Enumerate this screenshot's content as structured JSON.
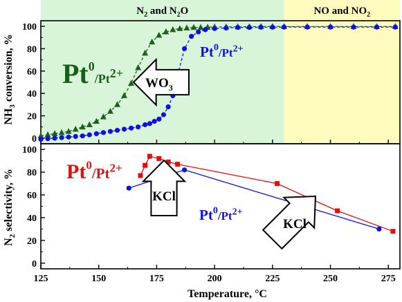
{
  "chart_data": [
    {
      "type": "line",
      "xlim": [
        125,
        280
      ],
      "ylim": [
        -5,
        105
      ],
      "ylabel_parts": {
        "pre": "NH",
        "sub": "3",
        "post": " conversion, %"
      },
      "yticks": [
        0,
        20,
        40,
        60,
        80,
        100
      ],
      "regions": [
        {
          "x_from": 125,
          "x_to": 230,
          "color": "#d9f5d9",
          "label_parts": {
            "a": "N",
            "a_sub": "2",
            "mid": " and N",
            "b_sub": "2",
            "post": "O"
          }
        },
        {
          "x_from": 230,
          "x_to": 280,
          "color": "#fffbbf",
          "label_parts": {
            "a": "NO and NO",
            "a_sub": "2",
            "mid": "",
            "b_sub": "",
            "post": ""
          }
        }
      ],
      "annotations": {
        "green_label": {
          "base": "Pt",
          "sup0": "0",
          "rest": "/Pt",
          "sup2": "2+",
          "color": "#1a5e1a"
        },
        "blue_label": {
          "base": "Pt",
          "sup0": "0",
          "rest": "/Pt",
          "sup2": "2+",
          "color": "#1010e0"
        },
        "arrow_label": {
          "base": "WO",
          "sub": "3"
        }
      },
      "series": [
        {
          "color": "#1e5e1e",
          "marker": "triangle",
          "x": [
            125,
            128,
            131,
            134,
            137,
            140,
            143,
            146,
            149,
            152,
            155,
            158,
            161,
            164,
            167,
            170,
            173,
            176,
            179,
            182,
            185,
            188,
            191,
            194,
            197,
            200,
            205,
            210,
            215,
            220,
            225,
            230,
            240,
            250,
            260,
            270,
            278
          ],
          "y": [
            2,
            3,
            4,
            5,
            6,
            8,
            10,
            12,
            15,
            19,
            24,
            30,
            38,
            49,
            63,
            76,
            86,
            92,
            95,
            97,
            98,
            98.5,
            99,
            99,
            99.2,
            99.4,
            99.5,
            99.6,
            99.7,
            99.8,
            99.8,
            99.8,
            99.8,
            99.8,
            99.8,
            99.8,
            99.8
          ]
        },
        {
          "color": "#1010e0",
          "marker": "circle",
          "x": [
            125,
            128,
            131,
            134,
            137,
            140,
            143,
            146,
            149,
            152,
            155,
            158,
            161,
            164,
            167,
            170,
            172,
            174,
            176,
            178,
            180,
            182,
            184,
            187,
            190,
            193,
            196,
            200,
            205,
            210,
            215,
            220,
            225,
            230,
            240,
            250,
            260,
            270,
            278
          ],
          "y": [
            -1,
            -0.5,
            0,
            0.5,
            1,
            1.5,
            2,
            3,
            4,
            5,
            6,
            7,
            8,
            9,
            10,
            12,
            13,
            15,
            17,
            21,
            28,
            38,
            56,
            80,
            91,
            95,
            97,
            98,
            98.5,
            99,
            99,
            99.2,
            99.2,
            99.3,
            99.3,
            99.3,
            99.3,
            99.3,
            99.3
          ]
        }
      ]
    },
    {
      "type": "line",
      "xlim": [
        125,
        280
      ],
      "ylim": [
        -5,
        105
      ],
      "xlabel": "Temperature,  °C",
      "ylabel_parts": {
        "pre": "N",
        "sub": "2",
        "post": " selectivity, %"
      },
      "xticks": [
        125,
        150,
        175,
        200,
        225,
        250,
        275
      ],
      "yticks": [
        0,
        20,
        40,
        60,
        80,
        100
      ],
      "annotations": {
        "red_label": {
          "base": "Pt",
          "sup0": "0",
          "rest": "/Pt",
          "sup2": "2+",
          "color": "#e01010"
        },
        "blue_label": {
          "base": "Pt",
          "sup0": "0",
          "rest": "/Pt",
          "sup2": "2+",
          "color": "#1010e0"
        },
        "kcl_left": "KCl",
        "kcl_right": "KCl"
      },
      "series": [
        {
          "color": "#e01010",
          "marker": "square",
          "x": [
            168,
            170,
            172,
            176,
            180,
            184,
            227,
            253,
            277
          ],
          "y": [
            77,
            86,
            94,
            92,
            89,
            87,
            70,
            46,
            28
          ]
        },
        {
          "color": "#1010e0",
          "marker": "circle",
          "x": [
            163,
            187,
            271
          ],
          "y": [
            66,
            82,
            30
          ]
        }
      ]
    }
  ]
}
